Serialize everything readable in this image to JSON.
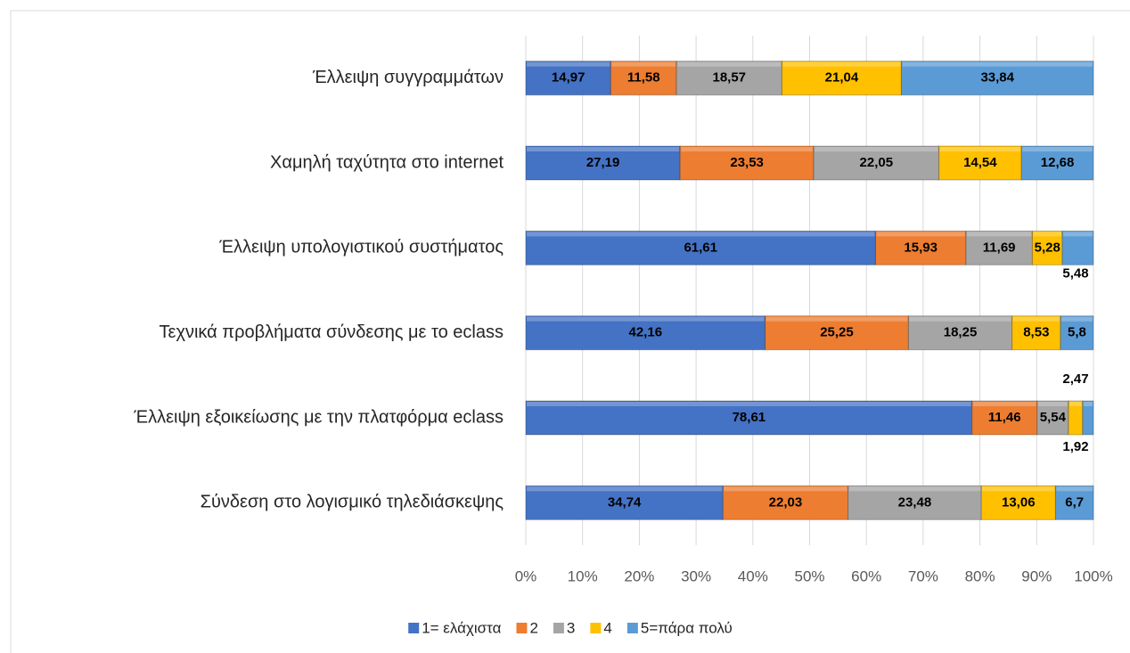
{
  "chart_data": {
    "type": "stacked-bar-horizontal",
    "categories": [
      "Έλλειψη συγγραμμάτων",
      "Χαμηλή ταχύτητα στο internet",
      "Έλλειψη υπολογιστικού συστήματος",
      "Τεχνικά προβλήματα σύνδεσης με το eclass",
      "Έλλειψη εξοικείωσης με την πλατφόρμα eclass",
      "Σύνδεση στο λογισμικό τηλεδιάσκεψης"
    ],
    "series": [
      {
        "name": "1= ελάχιστα",
        "color": "#4472c4",
        "values": [
          14.97,
          27.19,
          61.61,
          42.16,
          78.61,
          34.74
        ],
        "value_labels": [
          "14,97",
          "27,19",
          "61,61",
          "42,16",
          "78,61",
          "34,74"
        ]
      },
      {
        "name": "2",
        "color": "#ed7d31",
        "values": [
          11.58,
          23.53,
          15.93,
          25.25,
          11.46,
          22.03
        ],
        "value_labels": [
          "11,58",
          "23,53",
          "15,93",
          "25,25",
          "11,46",
          "22,03"
        ]
      },
      {
        "name": "3",
        "color": "#a5a5a5",
        "values": [
          18.57,
          22.05,
          11.69,
          18.25,
          5.54,
          23.48
        ],
        "value_labels": [
          "18,57",
          "22,05",
          "11,69",
          "18,25",
          "5,54",
          "23,48"
        ]
      },
      {
        "name": "4",
        "color": "#ffc000",
        "values": [
          21.04,
          14.54,
          5.28,
          8.53,
          2.47,
          13.06
        ],
        "value_labels": [
          "21,04",
          "14,54",
          "5,28",
          "8,53",
          "2,47",
          "13,06"
        ]
      },
      {
        "name": "5=πάρα πολύ",
        "color": "#5b9bd5",
        "values": [
          33.84,
          12.68,
          5.48,
          5.8,
          1.92,
          6.7
        ],
        "value_labels": [
          "33,84",
          "12,68",
          "5,48",
          "5,8",
          "1,92",
          "6,7"
        ]
      }
    ],
    "xlim": [
      0,
      100
    ],
    "xticks": [
      {
        "value": 0,
        "label": "0%"
      },
      {
        "value": 10,
        "label": "10%"
      },
      {
        "value": 20,
        "label": "20%"
      },
      {
        "value": 30,
        "label": "30%"
      },
      {
        "value": 40,
        "label": "40%"
      },
      {
        "value": 50,
        "label": "50%"
      },
      {
        "value": 60,
        "label": "60%"
      },
      {
        "value": 70,
        "label": "70%"
      },
      {
        "value": 80,
        "label": "80%"
      },
      {
        "value": 90,
        "label": "90%"
      },
      {
        "value": 100,
        "label": "100%"
      }
    ],
    "grid": true,
    "legend": "bottom"
  }
}
